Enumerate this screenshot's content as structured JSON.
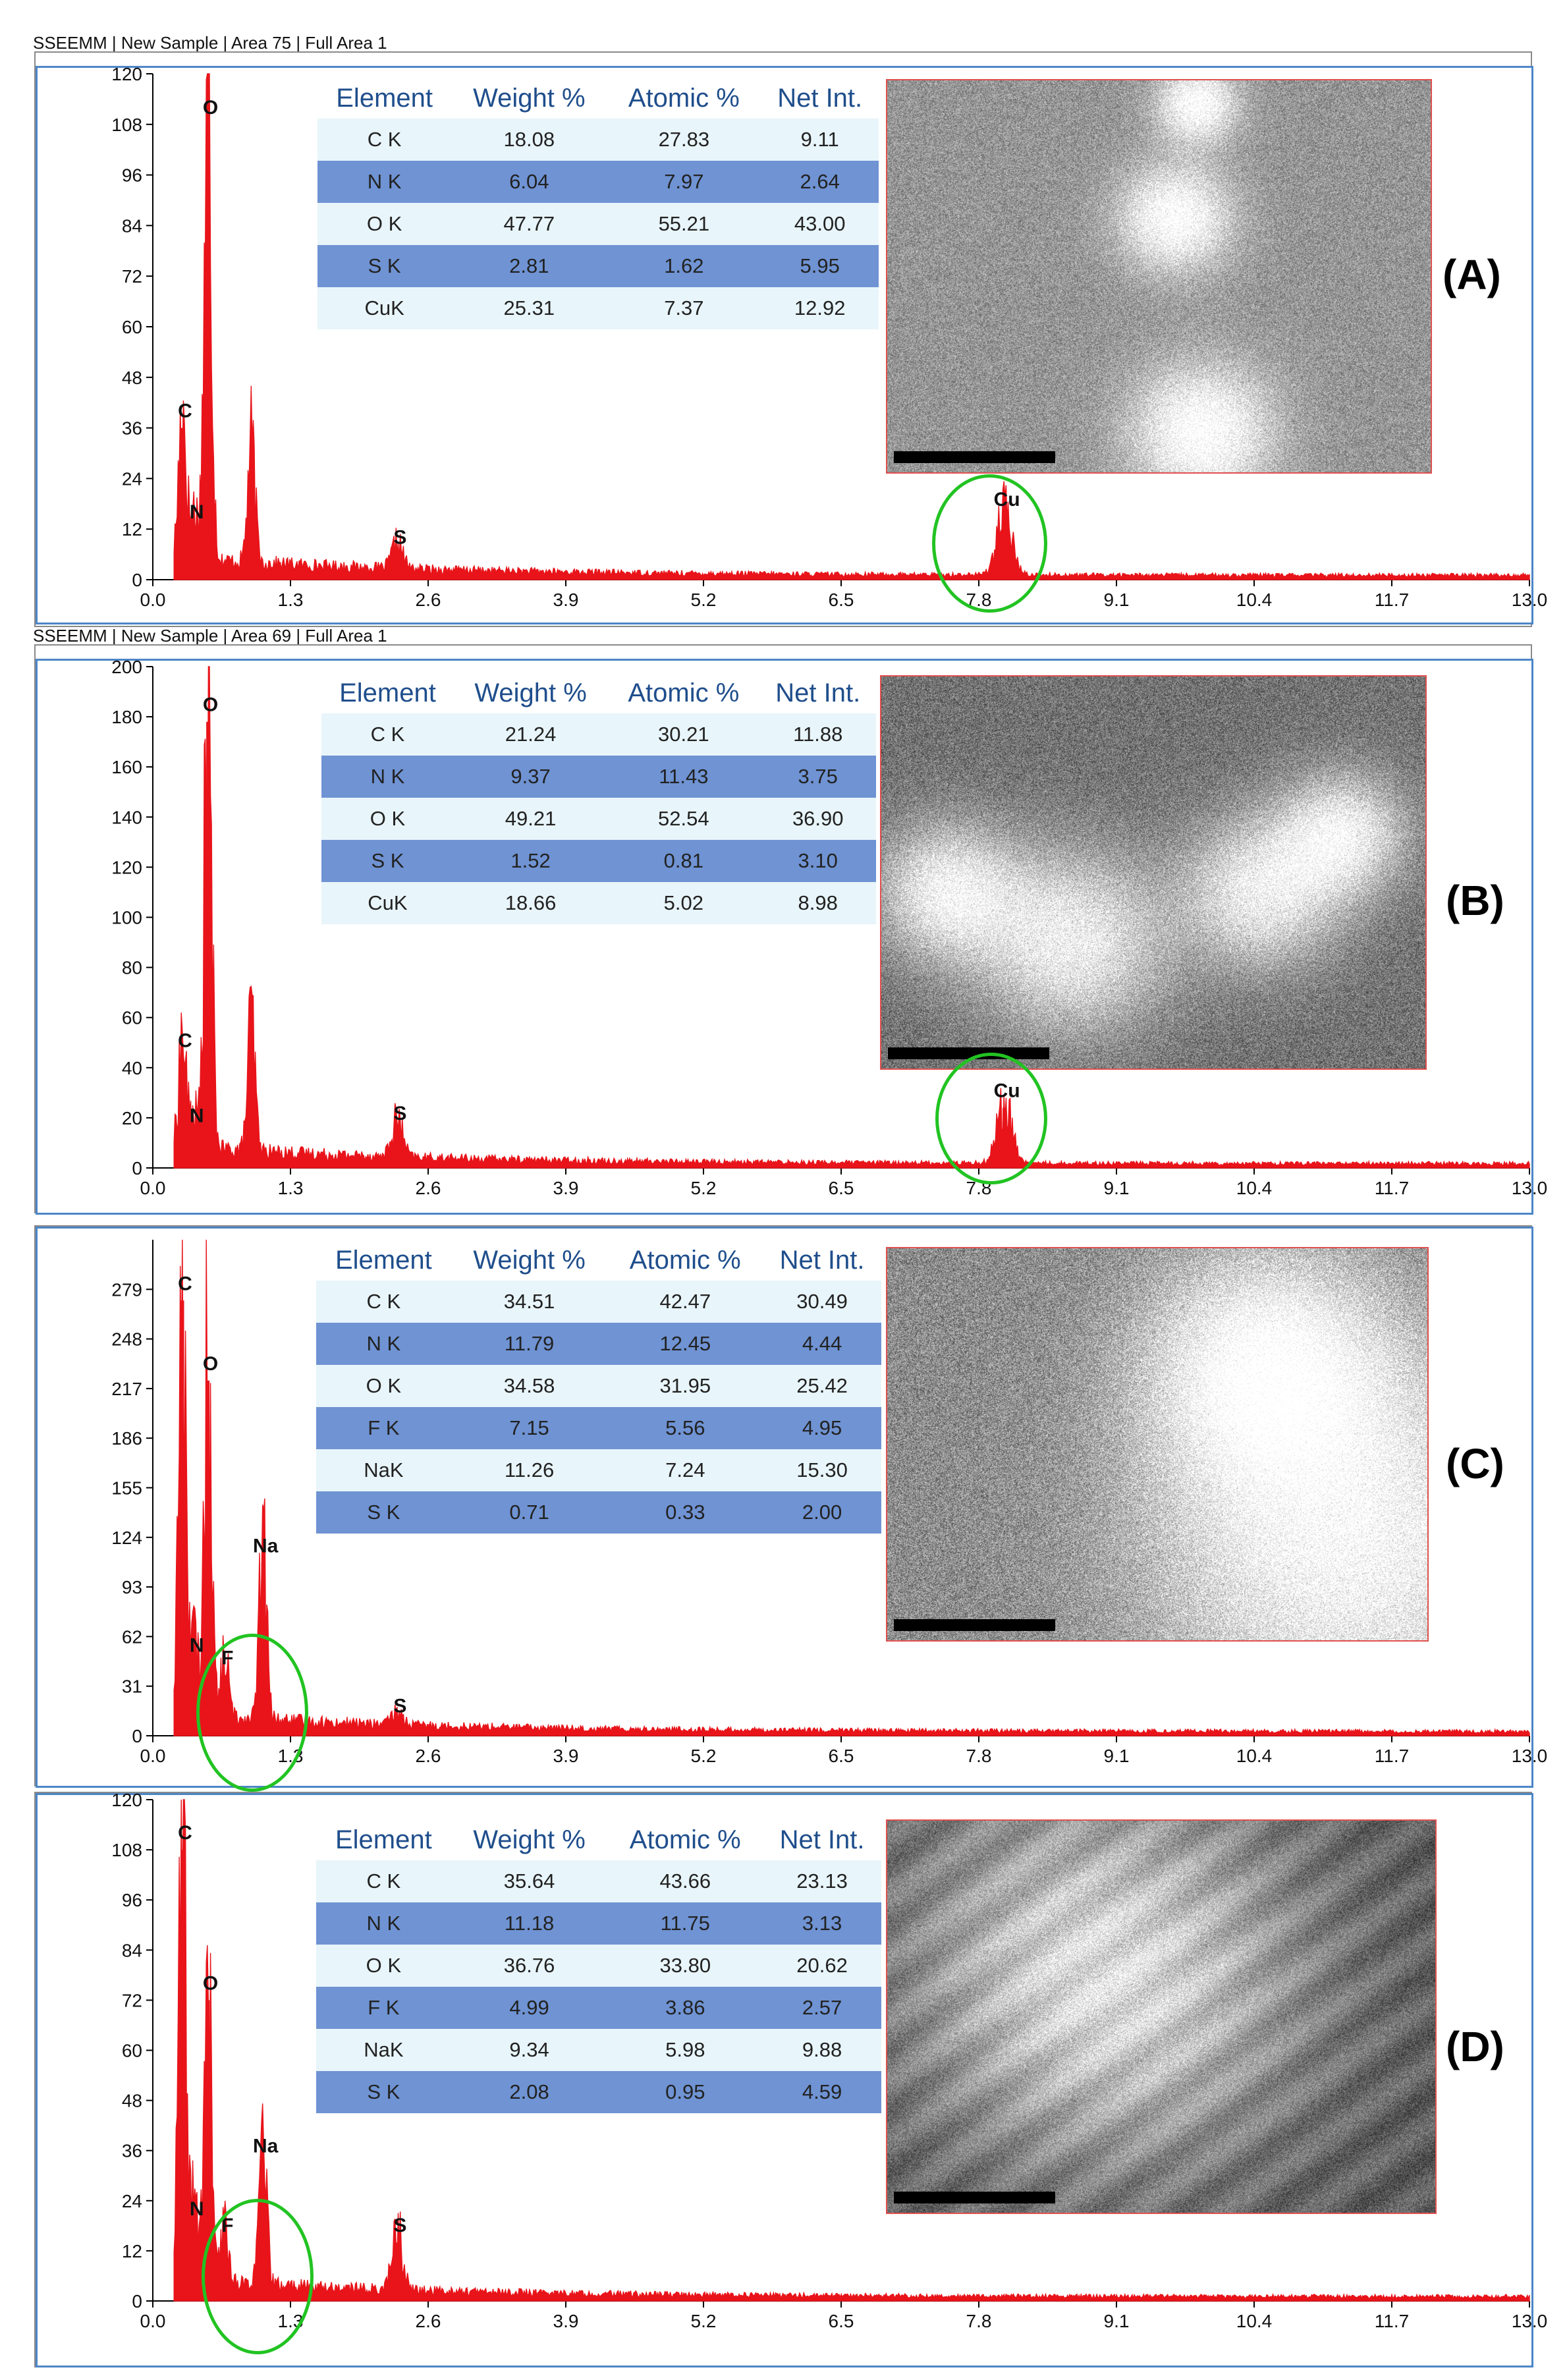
{
  "panels": [
    {
      "id": "A",
      "title": "SSEEMM | New Sample | Area 75 | Full Area 1",
      "label": "(A)",
      "columns": [
        "Element",
        "Weight %",
        "Atomic %",
        "Net Int."
      ],
      "rows": [
        [
          "C K",
          "18.08",
          "27.83",
          "9.11"
        ],
        [
          "N K",
          "6.04",
          "7.97",
          "2.64"
        ],
        [
          "O K",
          "47.77",
          "55.21",
          "43.00"
        ],
        [
          "S K",
          "2.81",
          "1.62",
          "5.95"
        ],
        [
          "CuK",
          "25.31",
          "7.37",
          "12.92"
        ]
      ]
    },
    {
      "id": "B",
      "title": "SSEEMM | New Sample | Area 69 | Full Area 1",
      "label": "(B)",
      "columns": [
        "Element",
        "Weight %",
        "Atomic %",
        "Net Int."
      ],
      "rows": [
        [
          "C K",
          "21.24",
          "30.21",
          "11.88"
        ],
        [
          "N K",
          "9.37",
          "11.43",
          "3.75"
        ],
        [
          "O K",
          "49.21",
          "52.54",
          "36.90"
        ],
        [
          "S K",
          "1.52",
          "0.81",
          "3.10"
        ],
        [
          "CuK",
          "18.66",
          "5.02",
          "8.98"
        ]
      ]
    },
    {
      "id": "C",
      "title": "",
      "label": "(C)",
      "columns": [
        "Element",
        "Weight %",
        "Atomic %",
        "Net Int."
      ],
      "rows": [
        [
          "C K",
          "34.51",
          "42.47",
          "30.49"
        ],
        [
          "N K",
          "11.79",
          "12.45",
          "4.44"
        ],
        [
          "O K",
          "34.58",
          "31.95",
          "25.42"
        ],
        [
          "F K",
          "7.15",
          "5.56",
          "4.95"
        ],
        [
          "NaK",
          "11.26",
          "7.24",
          "15.30"
        ],
        [
          "S K",
          "0.71",
          "0.33",
          "2.00"
        ]
      ]
    },
    {
      "id": "D",
      "title": "",
      "label": "(D)",
      "columns": [
        "Element",
        "Weight %",
        "Atomic %",
        "Net Int."
      ],
      "rows": [
        [
          "C K",
          "35.64",
          "43.66",
          "23.13"
        ],
        [
          "N K",
          "11.18",
          "11.75",
          "3.13"
        ],
        [
          "O K",
          "36.76",
          "33.80",
          "20.62"
        ],
        [
          "F K",
          "4.99",
          "3.86",
          "2.57"
        ],
        [
          "NaK",
          "9.34",
          "5.98",
          "9.88"
        ],
        [
          "S K",
          "2.08",
          "0.95",
          "4.59"
        ]
      ]
    }
  ],
  "colors": {
    "spectrum": "#e8141a",
    "frame": "#4d86c6",
    "highlight_ring": "#22c322",
    "table_alt_row": "#6f93d3",
    "table_light_row": "#e8f5fa",
    "table_header_text": "#1f4e8c"
  },
  "chart_data": [
    {
      "type": "area",
      "panel": "A",
      "xlim": [
        0,
        13.0
      ],
      "ylim": [
        0,
        120
      ],
      "xticks": [
        "0.0",
        "1.3",
        "2.6",
        "3.9",
        "5.2",
        "6.5",
        "7.8",
        "9.1",
        "10.4",
        "11.7",
        "13.0"
      ],
      "yticks": [
        "0",
        "12",
        "24",
        "36",
        "48",
        "60",
        "72",
        "84",
        "96",
        "108",
        "120"
      ],
      "peaks": [
        {
          "label": "C",
          "x": 0.28,
          "y": 36
        },
        {
          "label": "N",
          "x": 0.39,
          "y": 12
        },
        {
          "label": "O",
          "x": 0.52,
          "y": 108
        },
        {
          "label": "",
          "x": 0.93,
          "y": 28
        },
        {
          "label": "S",
          "x": 2.31,
          "y": 6
        },
        {
          "label": "Cu",
          "x": 8.04,
          "y": 15
        }
      ],
      "highlight": "Cu"
    },
    {
      "type": "area",
      "panel": "B",
      "xlim": [
        0,
        13.0
      ],
      "ylim": [
        0,
        200
      ],
      "xticks": [
        "0.0",
        "1.3",
        "2.6",
        "3.9",
        "5.2",
        "6.5",
        "7.8",
        "9.1",
        "10.4",
        "11.7",
        "13.0"
      ],
      "yticks": [
        "0",
        "20",
        "40",
        "60",
        "80",
        "100",
        "120",
        "140",
        "160",
        "180",
        "200"
      ],
      "peaks": [
        {
          "label": "C",
          "x": 0.28,
          "y": 44
        },
        {
          "label": "N",
          "x": 0.39,
          "y": 14
        },
        {
          "label": "O",
          "x": 0.52,
          "y": 178
        },
        {
          "label": "",
          "x": 0.93,
          "y": 52
        },
        {
          "label": "S",
          "x": 2.31,
          "y": 15
        },
        {
          "label": "Cu",
          "x": 8.04,
          "y": 24
        }
      ],
      "highlight": "Cu"
    },
    {
      "type": "area",
      "panel": "C",
      "xlim": [
        0,
        13.0
      ],
      "ylim": [
        0,
        310
      ],
      "xticks": [
        "0.0",
        "1.3",
        "2.6",
        "3.9",
        "5.2",
        "6.5",
        "7.8",
        "9.1",
        "10.4",
        "11.7",
        "13.0"
      ],
      "yticks": [
        "0",
        "31",
        "62",
        "93",
        "124",
        "155",
        "186",
        "217",
        "248",
        "279"
      ],
      "peaks": [
        {
          "label": "C",
          "x": 0.28,
          "y": 272
        },
        {
          "label": "N",
          "x": 0.39,
          "y": 46
        },
        {
          "label": "O",
          "x": 0.52,
          "y": 222
        },
        {
          "label": "F",
          "x": 0.68,
          "y": 38
        },
        {
          "label": "Na",
          "x": 1.04,
          "y": 108
        },
        {
          "label": "S",
          "x": 2.31,
          "y": 8
        }
      ],
      "highlight": "F"
    },
    {
      "type": "area",
      "panel": "D",
      "xlim": [
        0,
        13.0
      ],
      "ylim": [
        0,
        120
      ],
      "xticks": [
        "0.0",
        "1.3",
        "2.6",
        "3.9",
        "5.2",
        "6.5",
        "7.8",
        "9.1",
        "10.4",
        "11.7",
        "13.0"
      ],
      "yticks": [
        "0",
        "12",
        "24",
        "36",
        "48",
        "60",
        "72",
        "84",
        "96",
        "108",
        "120"
      ],
      "peaks": [
        {
          "label": "C",
          "x": 0.28,
          "y": 108
        },
        {
          "label": "N",
          "x": 0.39,
          "y": 18
        },
        {
          "label": "O",
          "x": 0.52,
          "y": 72
        },
        {
          "label": "F",
          "x": 0.68,
          "y": 14
        },
        {
          "label": "Na",
          "x": 1.04,
          "y": 33
        },
        {
          "label": "S",
          "x": 2.31,
          "y": 14
        }
      ],
      "highlight": "F"
    }
  ]
}
